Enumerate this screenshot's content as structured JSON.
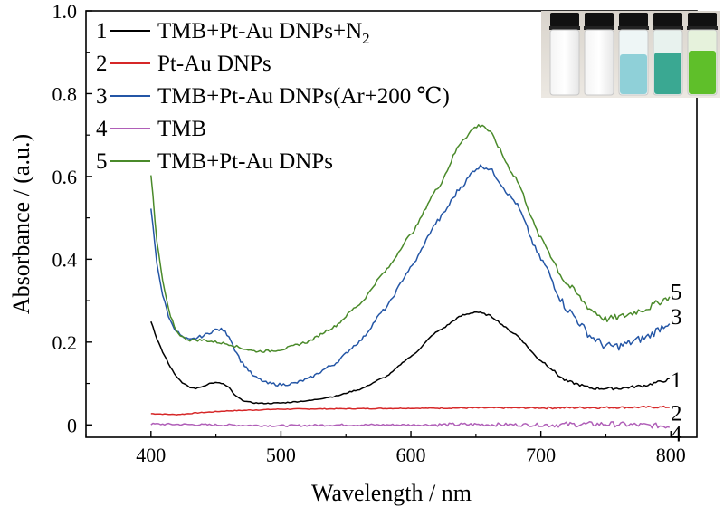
{
  "chart_data": {
    "type": "line",
    "title": "",
    "xlabel": "Wavelength / nm",
    "ylabel": "Absorbance / (a.u.)",
    "xlim": [
      350,
      820
    ],
    "ylim": [
      -0.03,
      1.0
    ],
    "xticks": [
      400,
      500,
      600,
      700,
      800
    ],
    "yticks": [
      0,
      0.2,
      0.4,
      0.6,
      0.8,
      1.0
    ],
    "xtick_labels": [
      "400",
      "500",
      "600",
      "700",
      "800"
    ],
    "ytick_labels": [
      "0",
      "0.2",
      "0.4",
      "0.6",
      "0.8",
      "1.0"
    ],
    "grid": false,
    "legend_position": "top-left",
    "inset_image": "photo of five vials (clear, clear, light blue, blue-green, green)",
    "series": [
      {
        "id": "1",
        "name": "TMB+Pt-Au DNPs+N",
        "name_sub": "2",
        "color": "#000000",
        "end_label": "1",
        "noise": 0.002,
        "x": [
          400,
          405,
          410,
          415,
          420,
          425,
          430,
          435,
          440,
          445,
          450,
          455,
          460,
          465,
          470,
          475,
          480,
          485,
          490,
          500,
          520,
          540,
          560,
          580,
          600,
          620,
          640,
          650,
          660,
          680,
          700,
          720,
          740,
          760,
          780,
          790,
          800
        ],
        "y": [
          0.25,
          0.205,
          0.17,
          0.14,
          0.115,
          0.1,
          0.09,
          0.088,
          0.093,
          0.1,
          0.102,
          0.1,
          0.09,
          0.07,
          0.06,
          0.055,
          0.053,
          0.052,
          0.052,
          0.053,
          0.058,
          0.068,
          0.085,
          0.115,
          0.165,
          0.225,
          0.265,
          0.273,
          0.265,
          0.22,
          0.155,
          0.105,
          0.088,
          0.088,
          0.095,
          0.103,
          0.11
        ]
      },
      {
        "id": "2",
        "name": "Pt-Au DNPs",
        "name_sub": "",
        "color": "#d62728",
        "end_label": "2",
        "noise": 0.0015,
        "x": [
          400,
          420,
          440,
          460,
          480,
          500,
          550,
          600,
          650,
          700,
          750,
          800
        ],
        "y": [
          0.027,
          0.025,
          0.03,
          0.034,
          0.036,
          0.038,
          0.039,
          0.04,
          0.041,
          0.041,
          0.042,
          0.043
        ]
      },
      {
        "id": "3",
        "name": "TMB+Pt-Au DNPs(Ar+200 ℃)",
        "name_sub": "",
        "color": "#2456a6",
        "end_label": "3",
        "noise": 0.006,
        "x": [
          400,
          405,
          410,
          415,
          420,
          425,
          430,
          440,
          450,
          455,
          460,
          465,
          470,
          480,
          490,
          500,
          510,
          520,
          540,
          560,
          580,
          600,
          620,
          640,
          650,
          655,
          660,
          680,
          700,
          720,
          740,
          750,
          760,
          780,
          800
        ],
        "y": [
          0.52,
          0.38,
          0.3,
          0.25,
          0.225,
          0.21,
          0.205,
          0.215,
          0.23,
          0.23,
          0.215,
          0.18,
          0.15,
          0.115,
          0.1,
          0.097,
          0.1,
          0.11,
          0.145,
          0.2,
          0.28,
          0.38,
          0.49,
          0.58,
          0.62,
          0.625,
          0.62,
          0.54,
          0.4,
          0.28,
          0.21,
          0.19,
          0.19,
          0.21,
          0.25
        ]
      },
      {
        "id": "4",
        "name": "TMB",
        "name_sub": "",
        "color": "#b05fb8",
        "end_label": "4",
        "noise": 0.004,
        "x": [
          400,
          450,
          500,
          550,
          600,
          650,
          700,
          750,
          800
        ],
        "y": [
          0.002,
          0.0,
          -0.002,
          0.0,
          0.0,
          0.001,
          0.0,
          0.002,
          -0.003
        ]
      },
      {
        "id": "5",
        "name": "TMB+Pt-Au DNPs",
        "name_sub": "",
        "color": "#4a8a2a",
        "end_label": "5",
        "noise": 0.005,
        "x": [
          400,
          405,
          410,
          415,
          420,
          425,
          430,
          440,
          450,
          460,
          470,
          480,
          490,
          500,
          520,
          540,
          560,
          580,
          600,
          620,
          640,
          650,
          655,
          660,
          680,
          700,
          720,
          740,
          750,
          760,
          780,
          800
        ],
        "y": [
          0.6,
          0.43,
          0.33,
          0.26,
          0.225,
          0.21,
          0.205,
          0.205,
          0.2,
          0.195,
          0.185,
          0.178,
          0.178,
          0.182,
          0.2,
          0.235,
          0.29,
          0.37,
          0.46,
          0.57,
          0.69,
          0.72,
          0.725,
          0.71,
          0.6,
          0.45,
          0.34,
          0.275,
          0.255,
          0.26,
          0.28,
          0.31
        ]
      }
    ]
  }
}
